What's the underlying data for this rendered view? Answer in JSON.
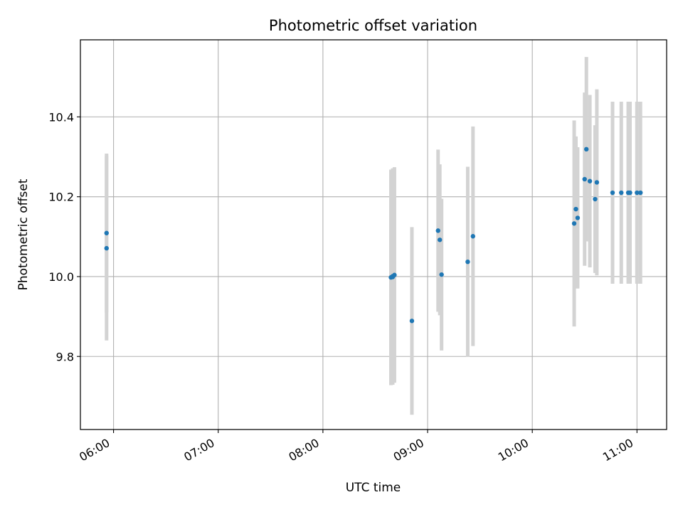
{
  "chart_data": {
    "type": "scatter",
    "title": "Photometric offset variation",
    "xlabel": "UTC time",
    "ylabel": "Photometric offset",
    "x_unit": "UTC time (HH:MM)",
    "xlim": [
      "05:41",
      "11:17"
    ],
    "ylim": [
      9.617,
      10.593
    ],
    "x_ticks": [
      "06:00",
      "07:00",
      "08:00",
      "09:00",
      "10:00",
      "11:00"
    ],
    "y_ticks": [
      9.8,
      10.0,
      10.2,
      10.4
    ],
    "y_tick_labels": [
      "9.8",
      "10.0",
      "10.2",
      "10.4"
    ],
    "grid": true,
    "legend": "none",
    "colors": {
      "point": "#1f77b4",
      "errorbar": "#d3d3d3",
      "grid": "#b0b0b0"
    },
    "points": [
      {
        "x": "05:56",
        "y": 10.109,
        "yerr": 0.199
      },
      {
        "x": "05:56",
        "y": 10.071,
        "yerr": 0.231
      },
      {
        "x": "08:39",
        "y": 9.998,
        "yerr": 0.27
      },
      {
        "x": "08:40",
        "y": 9.999,
        "yerr": 0.27
      },
      {
        "x": "08:40",
        "y": 10.001,
        "yerr": 0.27
      },
      {
        "x": "08:41",
        "y": 10.004,
        "yerr": 0.27
      },
      {
        "x": "08:51",
        "y": 9.889,
        "yerr": 0.235
      },
      {
        "x": "09:06",
        "y": 10.115,
        "yerr": 0.203
      },
      {
        "x": "09:07",
        "y": 10.092,
        "yerr": 0.189
      },
      {
        "x": "09:08",
        "y": 10.005,
        "yerr": 0.19
      },
      {
        "x": "09:23",
        "y": 10.037,
        "yerr": 0.238
      },
      {
        "x": "09:26",
        "y": 10.101,
        "yerr": 0.275
      },
      {
        "x": "10:24",
        "y": 10.133,
        "yerr": 0.258
      },
      {
        "x": "10:25",
        "y": 10.169,
        "yerr": 0.182
      },
      {
        "x": "10:26",
        "y": 10.147,
        "yerr": 0.177
      },
      {
        "x": "10:30",
        "y": 10.244,
        "yerr": 0.217
      },
      {
        "x": "10:31",
        "y": 10.319,
        "yerr": 0.231
      },
      {
        "x": "10:33",
        "y": 10.239,
        "yerr": 0.216
      },
      {
        "x": "10:36",
        "y": 10.194,
        "yerr": 0.185
      },
      {
        "x": "10:37",
        "y": 10.236,
        "yerr": 0.233
      },
      {
        "x": "10:46",
        "y": 10.21,
        "yerr": 0.228
      },
      {
        "x": "10:51",
        "y": 10.21,
        "yerr": 0.228
      },
      {
        "x": "10:55",
        "y": 10.21,
        "yerr": 0.228
      },
      {
        "x": "10:56",
        "y": 10.21,
        "yerr": 0.228
      },
      {
        "x": "11:00",
        "y": 10.21,
        "yerr": 0.228
      },
      {
        "x": "11:02",
        "y": 10.21,
        "yerr": 0.228
      }
    ]
  }
}
